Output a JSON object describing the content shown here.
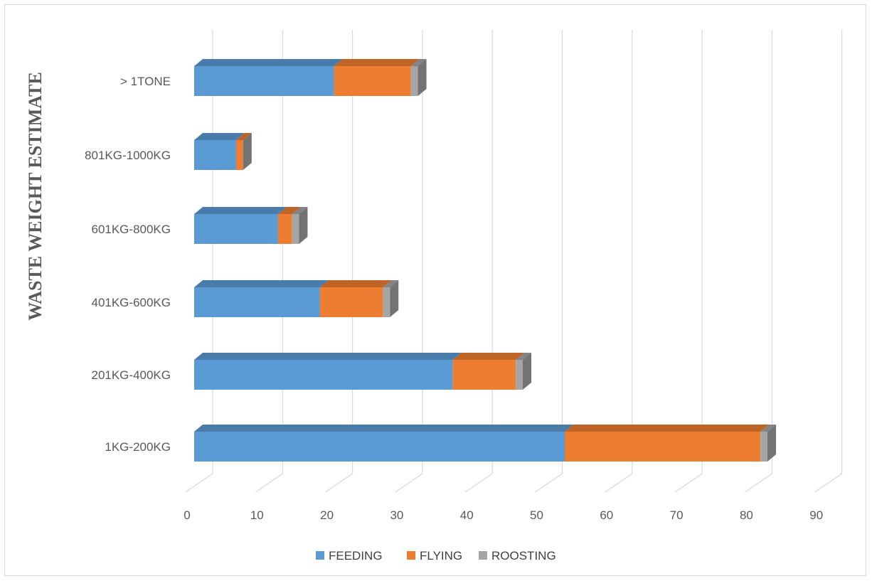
{
  "chart_data": {
    "type": "bar",
    "orientation": "horizontal",
    "stacked": true,
    "style": "3d",
    "ylabel": "WASTE WEIGHT ESTIMATE",
    "xlabel": "",
    "xlim": [
      0,
      90
    ],
    "xticks": [
      0,
      10,
      20,
      30,
      40,
      50,
      60,
      70,
      80,
      90
    ],
    "grid": true,
    "legend_position": "bottom",
    "categories": [
      "1KG-200KG",
      "201KG-400KG",
      "401KG-600KG",
      "601KG-800KG",
      "801KG-1000KG",
      "> 1TONE"
    ],
    "series": [
      {
        "name": "FEEDING",
        "color": "#5b9bd5",
        "values": [
          53,
          37,
          18,
          12,
          6,
          20
        ]
      },
      {
        "name": "FLYING",
        "color": "#ed7d31",
        "values": [
          28,
          9,
          9,
          2,
          1,
          11
        ]
      },
      {
        "name": "ROOSTING",
        "color": "#a5a5a5",
        "values": [
          1,
          1,
          1,
          1,
          0,
          1
        ]
      }
    ]
  }
}
